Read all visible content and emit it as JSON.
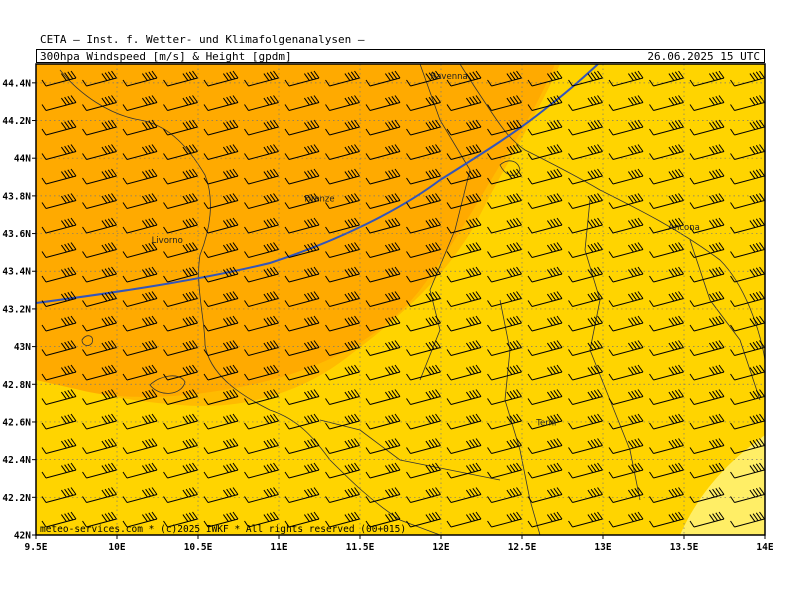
{
  "header": {
    "institute": "CETA – Inst. f. Wetter- und Klimafolgenanalysen –",
    "product": "300hpa_Windspeed_[m/s]_&_Height_[gpdm]",
    "valid": "26.06.2025 15 UTC"
  },
  "footer": "meteo-services.com * (c)2025 IWKF * All rights reserved (00+015)",
  "map": {
    "lon_labels": [
      "9.5E",
      "10E",
      "10.5E",
      "11E",
      "11.5E",
      "12E",
      "12.5E",
      "13E",
      "13.5E",
      "14E"
    ],
    "lat_labels": [
      "42N",
      "42.2N",
      "42.4N",
      "42.6N",
      "42.8N",
      "43N",
      "43.2N",
      "43.4N",
      "43.6N",
      "43.8N",
      "44N",
      "44.2N",
      "44.4N"
    ],
    "cities": [
      {
        "name": "Ravenna",
        "lon": 12.05,
        "lat": 44.42
      },
      {
        "name": "Firenze",
        "lon": 11.25,
        "lat": 43.77
      },
      {
        "name": "Livorno",
        "lon": 10.31,
        "lat": 43.55
      },
      {
        "name": "Ancona",
        "lon": 13.5,
        "lat": 43.62
      },
      {
        "name": "Terni",
        "lon": 12.65,
        "lat": 42.58
      }
    ],
    "colors": {
      "dark_orange": "#ffaa00",
      "orange": "#ffcc00",
      "yellow": "#ffdd33",
      "light_yellow": "#ffee66",
      "contour": "#3355bb",
      "grid": "#666666"
    },
    "wind_barb_direction": "west-southwest",
    "height_contour": "single blue isoline across northwest"
  }
}
